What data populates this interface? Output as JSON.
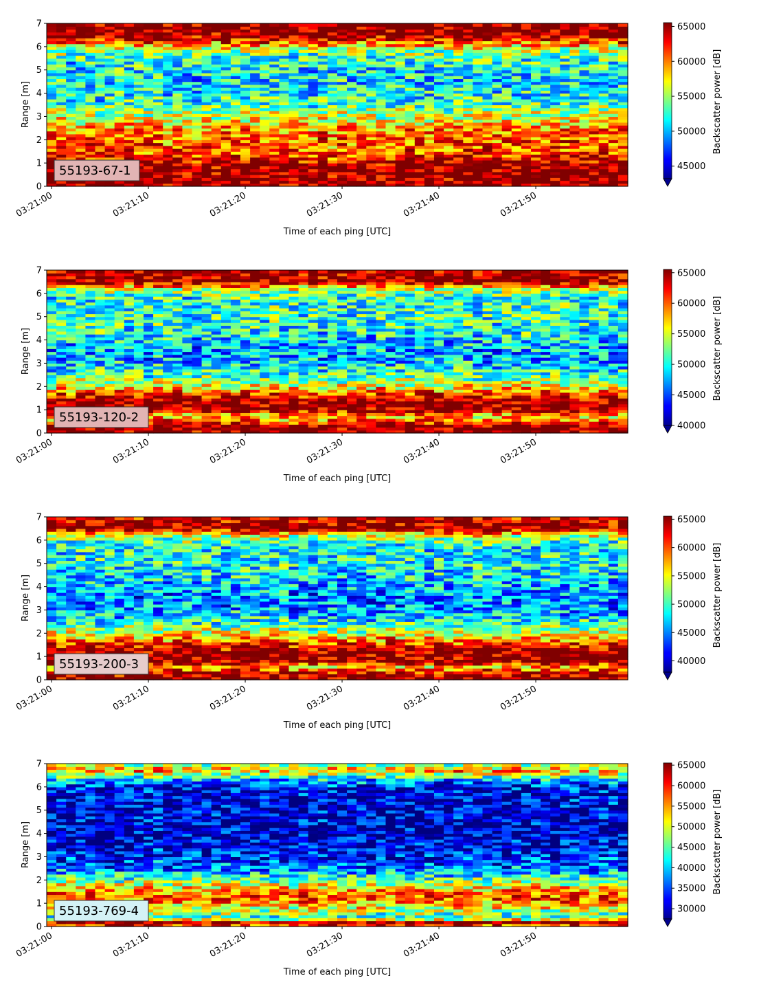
{
  "chart_data": [
    {
      "type": "heatmap",
      "label": "55193-67-1",
      "xlabel": "Time of each ping [UTC]",
      "ylabel": "Range [m]",
      "x_ticks": [
        "03:21:00",
        "03:21:10",
        "03:21:20",
        "03:21:30",
        "03:21:40",
        "03:21:50"
      ],
      "xlim_seconds": [
        -0.5,
        59.5
      ],
      "ylim": [
        0,
        7
      ],
      "y_ticks": [
        0,
        1,
        2,
        3,
        4,
        5,
        6,
        7
      ],
      "colorbar": {
        "label": "Backscatter power [dB]",
        "ticks": [
          45000,
          50000,
          55000,
          60000,
          65000
        ],
        "range": [
          43200,
          65535
        ],
        "extend": "min",
        "colormap": "jet"
      },
      "profile": [
        {
          "range": 0.1,
          "value": 65500
        },
        {
          "range": 0.3,
          "value": 65500
        },
        {
          "range": 0.6,
          "value": 65500
        },
        {
          "range": 0.9,
          "value": 65300
        },
        {
          "range": 1.2,
          "value": 62500
        },
        {
          "range": 1.6,
          "value": 60500
        },
        {
          "range": 2.0,
          "value": 61000
        },
        {
          "range": 2.4,
          "value": 60000
        },
        {
          "range": 2.8,
          "value": 57000
        },
        {
          "range": 3.2,
          "value": 55000
        },
        {
          "range": 3.6,
          "value": 52500
        },
        {
          "range": 4.0,
          "value": 51500
        },
        {
          "range": 4.5,
          "value": 51000
        },
        {
          "range": 5.0,
          "value": 51500
        },
        {
          "range": 5.5,
          "value": 52500
        },
        {
          "range": 5.9,
          "value": 55500
        },
        {
          "range": 6.2,
          "value": 61000
        },
        {
          "range": 6.5,
          "value": 65500
        },
        {
          "range": 7.0,
          "value": 65500
        }
      ]
    },
    {
      "type": "heatmap",
      "label": "55193-120-2",
      "xlabel": "Time of each ping [UTC]",
      "ylabel": "Range [m]",
      "x_ticks": [
        "03:21:00",
        "03:21:10",
        "03:21:20",
        "03:21:30",
        "03:21:40",
        "03:21:50"
      ],
      "xlim_seconds": [
        -0.5,
        59.5
      ],
      "ylim": [
        0,
        7
      ],
      "y_ticks": [
        0,
        1,
        2,
        3,
        4,
        5,
        6,
        7
      ],
      "colorbar": {
        "label": "Backscatter power [dB]",
        "ticks": [
          40000,
          45000,
          50000,
          55000,
          60000,
          65000
        ],
        "range": [
          40000,
          65535
        ],
        "extend": "min",
        "colormap": "jet"
      },
      "profile": [
        {
          "range": 0.1,
          "value": 65500
        },
        {
          "range": 0.3,
          "value": 65500
        },
        {
          "range": 0.5,
          "value": 60000
        },
        {
          "range": 0.75,
          "value": 57000
        },
        {
          "range": 1.0,
          "value": 65500
        },
        {
          "range": 1.4,
          "value": 65500
        },
        {
          "range": 1.7,
          "value": 61000
        },
        {
          "range": 2.0,
          "value": 56000
        },
        {
          "range": 2.4,
          "value": 52000
        },
        {
          "range": 2.8,
          "value": 49500
        },
        {
          "range": 3.2,
          "value": 47500
        },
        {
          "range": 3.6,
          "value": 47500
        },
        {
          "range": 4.0,
          "value": 49000
        },
        {
          "range": 4.6,
          "value": 50500
        },
        {
          "range": 5.2,
          "value": 51000
        },
        {
          "range": 5.8,
          "value": 50500
        },
        {
          "range": 6.2,
          "value": 55000
        },
        {
          "range": 6.5,
          "value": 65500
        },
        {
          "range": 7.0,
          "value": 64500
        }
      ]
    },
    {
      "type": "heatmap",
      "label": "55193-200-3",
      "xlabel": "Time of each ping [UTC]",
      "ylabel": "Range [m]",
      "x_ticks": [
        "03:21:00",
        "03:21:10",
        "03:21:20",
        "03:21:30",
        "03:21:40",
        "03:21:50"
      ],
      "xlim_seconds": [
        -0.5,
        59.5
      ],
      "ylim": [
        0,
        7
      ],
      "y_ticks": [
        0,
        1,
        2,
        3,
        4,
        5,
        6,
        7
      ],
      "colorbar": {
        "label": "Backscatter power [dB]",
        "ticks": [
          40000,
          45000,
          50000,
          55000,
          60000,
          65000
        ],
        "range": [
          38000,
          65535
        ],
        "extend": "min",
        "colormap": "jet"
      },
      "profile": [
        {
          "range": 0.1,
          "value": 65500
        },
        {
          "range": 0.3,
          "value": 63000
        },
        {
          "range": 0.55,
          "value": 57000
        },
        {
          "range": 0.8,
          "value": 65500
        },
        {
          "range": 1.2,
          "value": 65500
        },
        {
          "range": 1.6,
          "value": 60500
        },
        {
          "range": 2.0,
          "value": 54500
        },
        {
          "range": 2.4,
          "value": 50000
        },
        {
          "range": 2.8,
          "value": 47000
        },
        {
          "range": 3.2,
          "value": 45500
        },
        {
          "range": 3.6,
          "value": 45000
        },
        {
          "range": 4.0,
          "value": 46500
        },
        {
          "range": 4.6,
          "value": 48500
        },
        {
          "range": 5.2,
          "value": 49000
        },
        {
          "range": 5.8,
          "value": 48500
        },
        {
          "range": 6.2,
          "value": 54000
        },
        {
          "range": 6.5,
          "value": 65500
        },
        {
          "range": 7.0,
          "value": 63000
        }
      ]
    },
    {
      "type": "heatmap",
      "label": "55193-769-4",
      "xlabel": "Time of each ping [UTC]",
      "ylabel": "Range [m]",
      "x_ticks": [
        "03:21:00",
        "03:21:10",
        "03:21:20",
        "03:21:30",
        "03:21:40",
        "03:21:50"
      ],
      "xlim_seconds": [
        -0.5,
        59.5
      ],
      "ylim": [
        0,
        7
      ],
      "y_ticks": [
        0,
        1,
        2,
        3,
        4,
        5,
        6,
        7
      ],
      "colorbar": {
        "label": "Backscatter power [dB]",
        "ticks": [
          30000,
          35000,
          40000,
          45000,
          50000,
          55000,
          60000,
          65000
        ],
        "range": [
          27500,
          65535
        ],
        "extend": "min",
        "colormap": "jet"
      },
      "profile": [
        {
          "range": 0.1,
          "value": 60000
        },
        {
          "range": 0.2,
          "value": 65500
        },
        {
          "range": 0.35,
          "value": 45000
        },
        {
          "range": 0.6,
          "value": 47000
        },
        {
          "range": 0.9,
          "value": 53000
        },
        {
          "range": 1.2,
          "value": 58000
        },
        {
          "range": 1.5,
          "value": 56500
        },
        {
          "range": 1.8,
          "value": 50000
        },
        {
          "range": 2.2,
          "value": 42000
        },
        {
          "range": 2.6,
          "value": 36500
        },
        {
          "range": 3.0,
          "value": 33500
        },
        {
          "range": 3.5,
          "value": 31500
        },
        {
          "range": 4.0,
          "value": 30500
        },
        {
          "range": 4.5,
          "value": 31000
        },
        {
          "range": 5.0,
          "value": 31000
        },
        {
          "range": 5.5,
          "value": 31500
        },
        {
          "range": 6.0,
          "value": 32500
        },
        {
          "range": 6.4,
          "value": 42000
        },
        {
          "range": 6.7,
          "value": 55000
        },
        {
          "range": 7.0,
          "value": 47000
        }
      ]
    }
  ]
}
